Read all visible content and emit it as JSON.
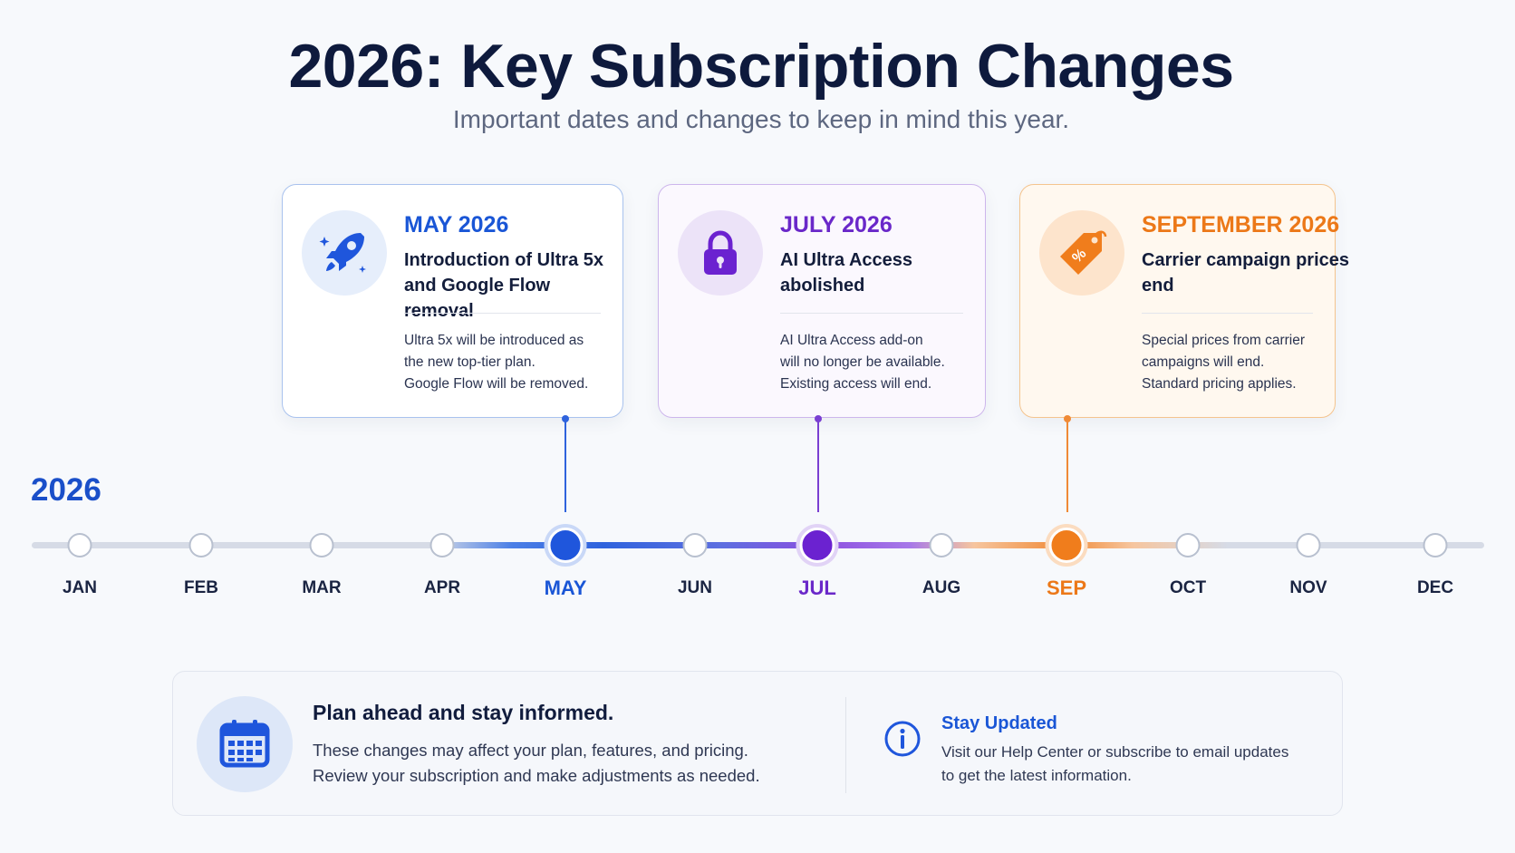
{
  "header": {
    "title": "2026: Key Subscription Changes",
    "subtitle": "Important dates and changes to keep in mind this year."
  },
  "colors": {
    "may_accent": "#1a56d6",
    "july_accent": "#6a28c9",
    "september_accent": "#ec7818",
    "title": "#0e1a3d",
    "track_inactive": "#d6dbe6"
  },
  "events": [
    {
      "date": "MAY 2026",
      "heading": "Introduction of Ultra 5x and Google Flow removal",
      "body": "Ultra 5x will be introduced as\nthe new top-tier plan.\nGoogle Flow will be removed.",
      "icon": "rocket-icon"
    },
    {
      "date": "JULY 2026",
      "heading": "AI Ultra Access abolished",
      "body": "AI Ultra Access add-on\nwill no longer be available.\nExisting access will end.",
      "icon": "lock-icon"
    },
    {
      "date": "SEPTEMBER 2026",
      "heading": "Carrier campaign prices end",
      "body": "Special prices from carrier\ncampaigns will end.\nStandard pricing applies.",
      "icon": "price-tag-icon"
    }
  ],
  "timeline": {
    "year": "2026",
    "months": [
      "JAN",
      "FEB",
      "MAR",
      "APR",
      "MAY",
      "JUN",
      "JUL",
      "AUG",
      "SEP",
      "OCT",
      "NOV",
      "DEC"
    ],
    "highlighted": [
      "MAY",
      "JUL",
      "SEP"
    ]
  },
  "info_panel": {
    "heading": "Plan ahead and stay informed.",
    "text": "These changes may affect your plan, features, and pricing.\nReview your subscription and make adjustments as needed.",
    "icon": "calendar-icon",
    "updates_heading": "Stay Updated",
    "updates_text": "Visit our Help Center or subscribe to email updates\nto get the latest information.",
    "updates_icon": "info-icon"
  }
}
